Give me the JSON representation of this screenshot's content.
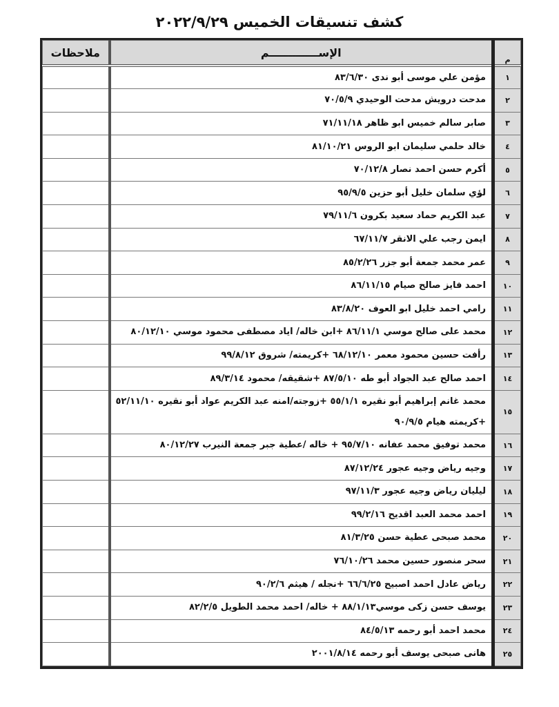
{
  "title": "كشف تنسيقات الخميس ٢٠٢٢/٩/٢٩",
  "headers": {
    "num": "م",
    "name": "الإســـــــــــــم",
    "notes": "ملاحظات"
  },
  "rows": [
    {
      "num": "١",
      "name": "مؤمن  علي موسى أبو ندى ٨٣/٦/٣٠",
      "notes": ""
    },
    {
      "num": "٢",
      "name": "مدحت درويش مدحت الوحيدي  ٧٠/٥/٩",
      "notes": ""
    },
    {
      "num": "٣",
      "name": "صابر سالم خميس ابو ظاهر ٧١/١١/١٨",
      "notes": ""
    },
    {
      "num": "٤",
      "name": "خالد حلمي سليمان ابو الروس ٨١/١٠/٢١",
      "notes": ""
    },
    {
      "num": "٥",
      "name": "أكرم حسن احمد نصار ٧٠/١٢/٨",
      "notes": ""
    },
    {
      "num": "٦",
      "name": "لؤي سلمان خليل أبو حزين ٩٥/٩/٥",
      "notes": ""
    },
    {
      "num": "٧",
      "name": "عبد الكريم حماد سعيد بكرون ٧٩/١١/٦",
      "notes": ""
    },
    {
      "num": "٨",
      "name": "ايمن رجب علي الانقر ٦٧/١١/٧",
      "notes": ""
    },
    {
      "num": "٩",
      "name": "عمر محمد جمعة أبو جزر ٨٥/٢/٢٦",
      "notes": ""
    },
    {
      "num": "١٠",
      "name": "احمد فايز صالح صيام  ٨٦/١١/١٥",
      "notes": ""
    },
    {
      "num": "١١",
      "name": "رامي احمد خليل ابو العوف  ٨٣/٨/٢٠",
      "notes": ""
    },
    {
      "num": "١٢",
      "name": "محمد على صالح موسي ٨٦/١١/١ +ابن خاله/ اياد مصطفى محمود موسي ٨٠/١٢/١٠",
      "notes": ""
    },
    {
      "num": "١٣",
      "name": "رأفت حسين محمود معمر ٦٨/١٢/١٠ +كريمته/ شروق ٩٩/٨/١٢",
      "notes": ""
    },
    {
      "num": "١٤",
      "name": "احمد صالح عبد الجواد أبو طه ٨٧/٥/١٠ +شقيقه/ محمود ٨٩/٣/١٤",
      "notes": ""
    },
    {
      "num": "١٥",
      "name": "محمد غانم إبراهيم أبو نقيره ٥٥/١/١ +زوجته/امنه عبد الكريم عواد أبو نقيره ٥٢/١١/١٠ +كريمته هيام ٩٠/٩/٥",
      "notes": ""
    },
    {
      "num": "١٦",
      "name": "محمد توفيق محمد عفانه ٩٥/٧/١٠ + خاله /عطية جبر جمعة النيرب ٨٠/١٢/٢٧",
      "notes": ""
    },
    {
      "num": "١٧",
      "name": "وجيه رياض وجيه عجور ٨٧/١٢/٢٤",
      "notes": ""
    },
    {
      "num": "١٨",
      "name": "ليليان رياض وجيه عجور ٩٧/١١/٣",
      "notes": ""
    },
    {
      "num": "١٩",
      "name": "احمد محمد العبد اقديح ٩٩/٢/١٦",
      "notes": ""
    },
    {
      "num": "٢٠",
      "name": "محمد صبحى عطية حسن ٨١/٣/٢٥",
      "notes": ""
    },
    {
      "num": "٢١",
      "name": "سحر منصور حسين محمد ٧٦/١٠/٢٦",
      "notes": ""
    },
    {
      "num": "٢٢",
      "name": "رياض عادل احمد اصبيح ٦٦/٦/٢٥ +نجله / هيثم ٩٠/٢/٦",
      "notes": ""
    },
    {
      "num": "٢٣",
      "name": "يوسف حسن زكى موسي٨٨/١/١٣ + خاله/ احمد محمد الطويل ٨٢/٢/٥",
      "notes": ""
    },
    {
      "num": "٢٤",
      "name": "محمد احمد أبو رحمه ٨٤/٥/١٣",
      "notes": ""
    },
    {
      "num": "٢٥",
      "name": "هانى صبحى يوسف أبو رحمه ٢٠٠١/٨/١٤",
      "notes": ""
    }
  ]
}
